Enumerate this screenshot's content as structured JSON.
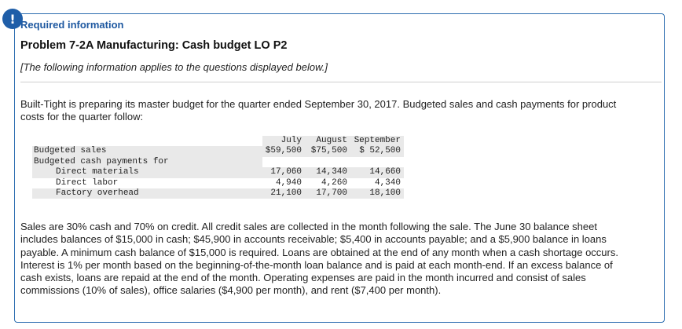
{
  "alert_badge": "!",
  "header": {
    "required": "Required information",
    "problem_title": "Problem 7-2A Manufacturing: Cash budget LO P2",
    "note": "[The following information applies to the questions displayed below.]"
  },
  "intro_text": "Built-Tight is preparing its master budget for the quarter ended September 30, 2017. Budgeted sales and cash payments for product costs for the quarter follow:",
  "table": {
    "columns": [
      "July",
      "August",
      "September"
    ],
    "rows": [
      {
        "label": "Budgeted sales",
        "values": [
          "$59,500",
          "$75,500",
          "$ 52,500"
        ]
      },
      {
        "label": "Budgeted cash payments for",
        "values": [
          "",
          "",
          ""
        ]
      },
      {
        "label": "Direct materials",
        "values": [
          "17,060",
          "14,340",
          "14,660"
        ]
      },
      {
        "label": "Direct labor",
        "values": [
          "4,940",
          "4,260",
          "4,340"
        ]
      },
      {
        "label": "Factory overhead",
        "values": [
          "21,100",
          "17,700",
          "18,100"
        ]
      }
    ]
  },
  "details_text": "Sales are 30% cash and 70% on credit. All credit sales are collected in the month following the sale. The June 30 balance sheet includes balances of $15,000 in cash; $45,900 in accounts receivable; $5,400 in accounts payable; and a $5,900 balance in loans payable. A minimum cash balance of $15,000 is required. Loans are obtained at the end of any month when a cash shortage occurs. Interest is 1% per month based on the beginning-of-the-month loan balance and is paid at each month-end. If an excess balance of cash exists, loans are repaid at the end of the month. Operating expenses are paid in the month incurred and consist of sales commissions (10% of sales), office salaries ($4,900 per month), and rent ($7,400 per month)."
}
